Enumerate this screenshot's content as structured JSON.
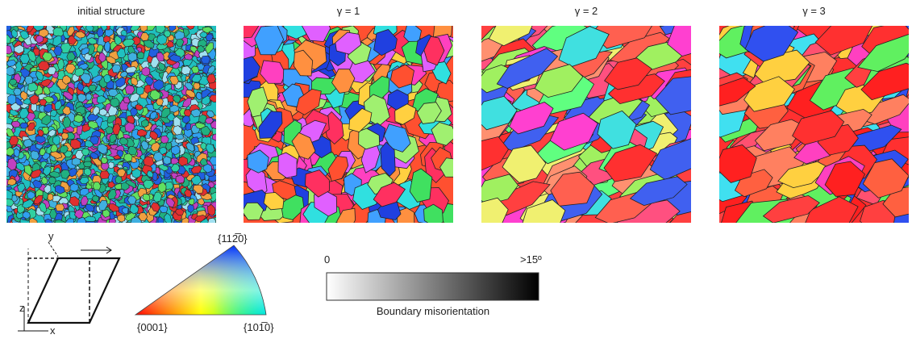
{
  "panels": [
    {
      "title": "initial structure"
    },
    {
      "title": "γ = 1"
    },
    {
      "title": "γ = 2"
    },
    {
      "title": "γ = 3"
    }
  ],
  "shear_diagram": {
    "axis_y": "y",
    "axis_z": "z",
    "axis_x": "x"
  },
  "ipf_triangle": {
    "top": "{112̅0}",
    "left": "{0001}",
    "right": "{101̅0}"
  },
  "colorbar": {
    "min_label": "0",
    "max_label": ">15º",
    "title": "Boundary misorientation"
  }
}
